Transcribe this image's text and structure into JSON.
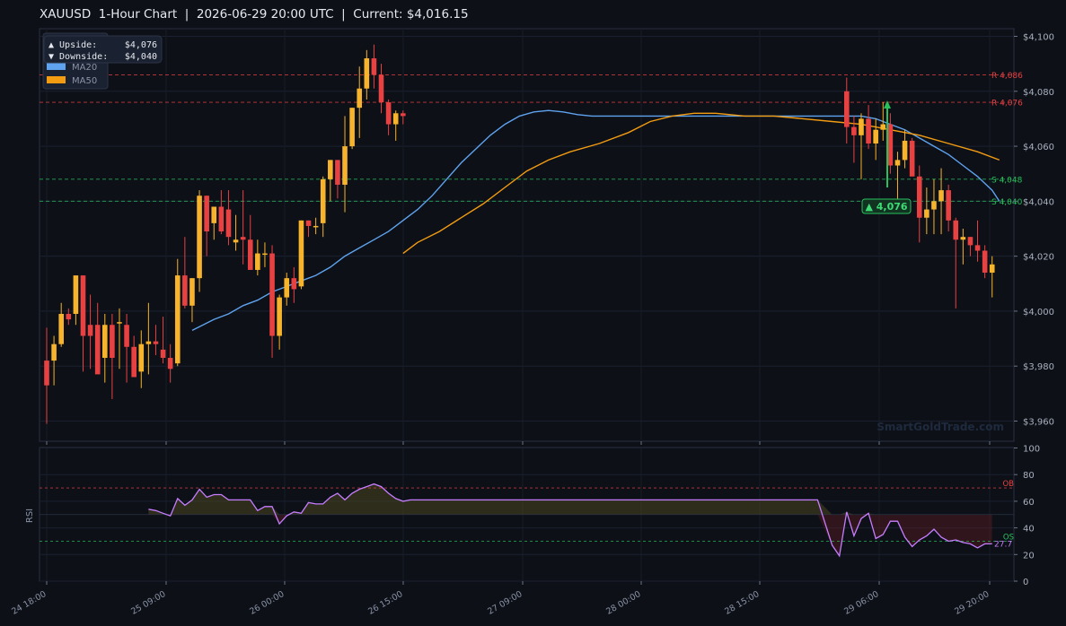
{
  "title": "XAUUSD  1-Hour Chart  |  2026-06-29 20:00 UTC  |  Current: $4,016.15",
  "info_box": {
    "upside_label": "▲ Upside:",
    "upside_value": "$4,076",
    "downside_label": "▼ Downside:",
    "downside_value": "$4,040"
  },
  "watermark": "SmartGoldTrade.com",
  "colors": {
    "up": "#f7b32b",
    "down": "#e84142",
    "ma20": "#5fa3ef",
    "ma50": "#f39c12",
    "resistance": "#e84142",
    "support": "#27c25c",
    "rsi": "#c77dff",
    "bg": "#0d1017"
  },
  "chart_data": {
    "type": "candlestick",
    "y_ticks": [
      "$3,960",
      "$3,980",
      "$4,000",
      "$4,020",
      "$4,040",
      "$4,060",
      "$4,080",
      "$4,100"
    ],
    "ylim": [
      3956,
      4102
    ],
    "x_ticks": [
      "24 18:00",
      "25 09:00",
      "26 00:00",
      "26 15:00",
      "27 09:00",
      "28 00:00",
      "28 15:00",
      "29 06:00",
      "29 20:00"
    ],
    "legend": [
      "MA20",
      "MA50"
    ],
    "levels": [
      {
        "label": "R 4,086",
        "value": 4086,
        "kind": "resistance"
      },
      {
        "label": "R 4,076",
        "value": 4076,
        "kind": "resistance"
      },
      {
        "label": "S 4,048",
        "value": 4048,
        "kind": "support"
      },
      {
        "label": "S 4,040",
        "value": 4040,
        "kind": "support"
      }
    ],
    "target_label": "▲ 4,076",
    "candles_segment1": [
      [
        3982,
        3994,
        3959,
        3973
      ],
      [
        3982,
        3991,
        3973,
        3988
      ],
      [
        3988,
        4003,
        3987,
        3999
      ],
      [
        3999,
        4001,
        3995,
        3997
      ],
      [
        3999,
        4009,
        3995,
        4013
      ],
      [
        4013,
        4013,
        3978,
        3991
      ],
      [
        3995,
        4006,
        3979,
        3991
      ],
      [
        3995,
        4003,
        3982,
        3977
      ],
      [
        3983,
        3999,
        3974,
        3995
      ],
      [
        3995,
        3999,
        3968,
        3983
      ],
      [
        3996,
        4001,
        3979,
        3996
      ],
      [
        3995,
        3999,
        3974,
        3987
      ],
      [
        3987,
        3991,
        3978,
        3976
      ],
      [
        3978,
        3993,
        3972,
        3988
      ],
      [
        3988,
        4003,
        3977,
        3989
      ],
      [
        3989,
        3995,
        3984,
        3988
      ],
      [
        3986,
        3998,
        3981,
        3983
      ],
      [
        3983,
        3988,
        3974,
        3979
      ],
      [
        3981,
        4019,
        3980,
        4013
      ],
      [
        4013,
        4027,
        4001,
        4002
      ],
      [
        4002,
        4012,
        3996,
        4012
      ],
      [
        4012,
        4044,
        4007,
        4042
      ],
      [
        4042,
        4042,
        4020,
        4029
      ],
      [
        4032,
        4038,
        4026,
        4038
      ],
      [
        4038,
        4044,
        4028,
        4029
      ],
      [
        4037,
        4044,
        4024,
        4027
      ],
      [
        4025,
        4035,
        4022,
        4026
      ],
      [
        4027,
        4044,
        4017,
        4026
      ],
      [
        4026,
        4035,
        4018,
        4015
      ],
      [
        4015,
        4026,
        4013,
        4021
      ],
      [
        4021,
        4025,
        4016,
        4021
      ],
      [
        4021,
        4024,
        3983,
        3991
      ],
      [
        3991,
        4006,
        3986,
        4005
      ],
      [
        4005,
        4014,
        4002,
        4012
      ],
      [
        4012,
        4016,
        4003,
        4008
      ],
      [
        4009,
        4033,
        4008,
        4033
      ],
      [
        4033,
        4033,
        4027,
        4031
      ],
      [
        4031,
        4034,
        4028,
        4031
      ],
      [
        4032,
        4049,
        4027,
        4048
      ],
      [
        4048,
        4055,
        4040,
        4055
      ],
      [
        4055,
        4055,
        4041,
        4046
      ],
      [
        4046,
        4071,
        4036,
        4060
      ],
      [
        4060,
        4074,
        4059,
        4074
      ],
      [
        4074,
        4089,
        4063,
        4081
      ],
      [
        4081,
        4095,
        4077,
        4092
      ],
      [
        4092,
        4097,
        4081,
        4086
      ],
      [
        4086,
        4090,
        4072,
        4076
      ],
      [
        4076,
        4077,
        4064,
        4068
      ],
      [
        4068,
        4073,
        4062,
        4072
      ],
      [
        4072,
        4073,
        4068,
        4071
      ]
    ],
    "candles_segment2": [
      [
        4080,
        4085,
        4061,
        4067
      ],
      [
        4067,
        4071,
        4054,
        4064
      ],
      [
        4064,
        4072,
        4048,
        4070
      ],
      [
        4070,
        4075,
        4059,
        4061
      ],
      [
        4061,
        4070,
        4055,
        4066
      ],
      [
        4066,
        4076,
        4062,
        4068
      ],
      [
        4068,
        4072,
        4050,
        4053
      ],
      [
        4053,
        4058,
        4040,
        4055
      ],
      [
        4055,
        4066,
        4052,
        4062
      ],
      [
        4062,
        4063,
        4050,
        4049
      ],
      [
        4049,
        4053,
        4025,
        4034
      ],
      [
        4034,
        4045,
        4028,
        4037
      ],
      [
        4037,
        4048,
        4028,
        4040
      ],
      [
        4040,
        4052,
        4028,
        4044
      ],
      [
        4044,
        4046,
        4029,
        4033
      ],
      [
        4033,
        4034,
        4001,
        4026
      ],
      [
        4026,
        4030,
        4017,
        4027
      ],
      [
        4027,
        4027,
        4020,
        4024
      ],
      [
        4024,
        4033,
        4018,
        4022
      ],
      [
        4022,
        4024,
        4012,
        4014
      ],
      [
        4014,
        4020,
        4005,
        4017
      ]
    ],
    "ma20": [
      [
        20,
        3993
      ],
      [
        23,
        3997
      ],
      [
        25,
        3999
      ],
      [
        27,
        4002
      ],
      [
        29,
        4004
      ],
      [
        31,
        4007
      ],
      [
        33,
        4009
      ],
      [
        35,
        4011
      ],
      [
        37,
        4013
      ],
      [
        39,
        4016
      ],
      [
        41,
        4020
      ],
      [
        43,
        4023
      ],
      [
        45,
        4026
      ],
      [
        47,
        4029
      ],
      [
        49,
        4033
      ],
      [
        51,
        4037
      ],
      [
        53,
        4042
      ],
      [
        55,
        4048
      ],
      [
        57,
        4054
      ],
      [
        59,
        4059
      ],
      [
        61,
        4064
      ],
      [
        63,
        4068
      ],
      [
        65,
        4071
      ],
      [
        67,
        4072.5
      ],
      [
        69,
        4073
      ],
      [
        71,
        4072.5
      ],
      [
        73,
        4071.5
      ],
      [
        75,
        4071
      ],
      [
        95,
        4071
      ],
      [
        105,
        4071
      ],
      [
        112,
        4071
      ],
      [
        114,
        4070
      ],
      [
        116,
        4068
      ],
      [
        118,
        4066
      ],
      [
        120,
        4063
      ],
      [
        122,
        4060
      ],
      [
        124,
        4057
      ],
      [
        126,
        4053
      ],
      [
        128,
        4049
      ],
      [
        130,
        4044
      ],
      [
        131,
        4040
      ]
    ],
    "ma50": [
      [
        49,
        4021
      ],
      [
        51,
        4025
      ],
      [
        54,
        4029
      ],
      [
        57,
        4034
      ],
      [
        60,
        4039
      ],
      [
        63,
        4045
      ],
      [
        66,
        4051
      ],
      [
        69,
        4055
      ],
      [
        72,
        4058
      ],
      [
        76,
        4061
      ],
      [
        80,
        4065
      ],
      [
        83,
        4069
      ],
      [
        86,
        4071
      ],
      [
        89,
        4072
      ],
      [
        92,
        4072
      ],
      [
        96,
        4071
      ],
      [
        100,
        4071
      ],
      [
        104,
        4070
      ],
      [
        108,
        4069
      ],
      [
        112,
        4068
      ],
      [
        116,
        4066
      ],
      [
        120,
        4064
      ],
      [
        124,
        4061
      ],
      [
        128,
        4058
      ],
      [
        131,
        4055
      ]
    ],
    "rsi": {
      "label": "RSI",
      "ylim": [
        0,
        100
      ],
      "y_ticks": [
        "0",
        "20",
        "40",
        "60",
        "80",
        "100"
      ],
      "overbought": 70,
      "oversold": 30,
      "ob_label": "OB",
      "os_label": "OS",
      "last_label": "27.7",
      "values": [
        [
          14,
          54
        ],
        [
          15,
          53
        ],
        [
          16,
          51
        ],
        [
          17,
          49
        ],
        [
          18,
          62
        ],
        [
          19,
          57
        ],
        [
          20,
          61
        ],
        [
          21,
          69
        ],
        [
          22,
          63
        ],
        [
          23,
          65
        ],
        [
          24,
          65
        ],
        [
          25,
          61
        ],
        [
          26,
          61
        ],
        [
          27,
          61
        ],
        [
          28,
          61
        ],
        [
          29,
          53
        ],
        [
          30,
          56
        ],
        [
          31,
          56
        ],
        [
          32,
          43
        ],
        [
          33,
          49
        ],
        [
          34,
          52
        ],
        [
          35,
          51
        ],
        [
          36,
          59
        ],
        [
          37,
          58
        ],
        [
          38,
          58
        ],
        [
          39,
          63
        ],
        [
          40,
          66
        ],
        [
          41,
          61
        ],
        [
          42,
          66
        ],
        [
          43,
          69
        ],
        [
          44,
          71
        ],
        [
          45,
          73
        ],
        [
          46,
          71
        ],
        [
          47,
          66
        ],
        [
          48,
          62
        ],
        [
          49,
          60
        ],
        [
          50,
          61
        ],
        [
          51,
          61
        ],
        [
          60,
          61
        ],
        [
          80,
          61
        ],
        [
          100,
          61
        ],
        [
          106,
          61
        ],
        [
          108,
          27
        ],
        [
          109,
          19
        ],
        [
          110,
          52
        ],
        [
          111,
          34
        ],
        [
          112,
          47
        ],
        [
          113,
          51
        ],
        [
          114,
          32
        ],
        [
          115,
          35
        ],
        [
          116,
          45
        ],
        [
          117,
          45
        ],
        [
          118,
          33
        ],
        [
          119,
          26
        ],
        [
          120,
          31
        ],
        [
          121,
          34
        ],
        [
          122,
          39
        ],
        [
          123,
          33
        ],
        [
          124,
          30
        ],
        [
          125,
          31
        ],
        [
          126,
          29
        ],
        [
          127,
          28
        ],
        [
          128,
          25
        ],
        [
          129,
          28
        ],
        [
          130,
          28
        ]
      ]
    }
  }
}
